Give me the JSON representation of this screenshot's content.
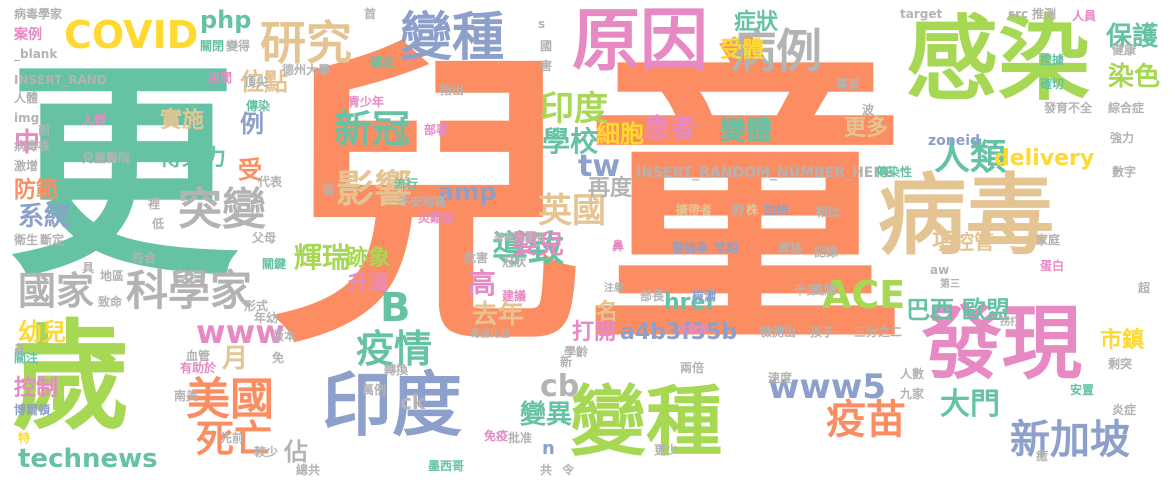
{
  "palette": {
    "orange": "#fc8d62",
    "green": "#a6d854",
    "teal": "#66c2a5",
    "blue": "#8da0cb",
    "pink": "#e78ac3",
    "tan": "#e5c494",
    "yellow": "#ffd92f",
    "gray": "#b3b3b3"
  },
  "words": [
    {
      "text": "兒童",
      "color": "orange"
    },
    {
      "text": "更",
      "color": "teal"
    },
    {
      "text": "歲",
      "color": "green"
    },
    {
      "text": "感染",
      "color": "green"
    },
    {
      "text": "病毒",
      "color": "tan"
    },
    {
      "text": "發現",
      "color": "pink"
    },
    {
      "text": "原因",
      "color": "pink"
    },
    {
      "text": "變種",
      "color": "blue"
    },
    {
      "text": "印度",
      "color": "blue"
    },
    {
      "text": "變種",
      "color": "green"
    },
    {
      "text": "病例",
      "color": "gray"
    },
    {
      "text": "研究",
      "color": "tan"
    },
    {
      "text": "COVID",
      "color": "yellow"
    },
    {
      "text": "科學家",
      "color": "gray"
    },
    {
      "text": "突變",
      "color": "gray"
    },
    {
      "text": "疫苗",
      "color": "orange"
    },
    {
      "text": "美國",
      "color": "orange"
    },
    {
      "text": "新加坡",
      "color": "blue"
    },
    {
      "text": "新冠",
      "color": "teal"
    },
    {
      "text": "影響",
      "color": "tan"
    },
    {
      "text": "ACE",
      "color": "green"
    },
    {
      "text": "國家",
      "color": "gray"
    },
    {
      "text": "死亡",
      "color": "orange"
    },
    {
      "text": "technews",
      "color": "teal"
    },
    {
      "text": "人類",
      "color": "teal"
    },
    {
      "text": "印度",
      "color": "green"
    },
    {
      "text": "英國",
      "color": "tan"
    },
    {
      "text": "導致",
      "color": "teal"
    },
    {
      "text": "疫情",
      "color": "teal"
    },
    {
      "text": "B",
      "color": "teal"
    },
    {
      "text": "www5",
      "color": "blue"
    },
    {
      "text": "www",
      "color": "pink"
    },
    {
      "text": "保護",
      "color": "teal"
    },
    {
      "text": "染色",
      "color": "green"
    },
    {
      "text": "症狀",
      "color": "teal"
    },
    {
      "text": "受體",
      "color": "yellow"
    },
    {
      "text": "php",
      "color": "teal"
    },
    {
      "text": "位點",
      "color": "tan"
    },
    {
      "text": "患者",
      "color": "pink"
    },
    {
      "text": "學校",
      "color": "teal"
    },
    {
      "text": "細胞",
      "color": "yellow"
    },
    {
      "text": "變體",
      "color": "teal"
    },
    {
      "text": "更多",
      "color": "tan"
    },
    {
      "text": "tw",
      "color": "blue"
    },
    {
      "text": "delivery",
      "color": "yellow"
    },
    {
      "text": "amp",
      "color": "blue"
    },
    {
      "text": "實施",
      "color": "tan"
    },
    {
      "text": "傳染力",
      "color": "teal"
    },
    {
      "text": "輝瑞",
      "color": "green"
    },
    {
      "text": "嬰兒",
      "color": "pink"
    },
    {
      "text": "高",
      "color": "pink"
    },
    {
      "text": "去年",
      "color": "tan"
    },
    {
      "text": "巴西",
      "color": "teal"
    },
    {
      "text": "歐盟",
      "color": "teal"
    },
    {
      "text": "大門",
      "color": "teal"
    },
    {
      "text": "變異",
      "color": "teal"
    },
    {
      "text": "cb",
      "color": "gray"
    },
    {
      "text": "月",
      "color": "tan"
    },
    {
      "text": "幼兒",
      "color": "yellow"
    },
    {
      "text": "系統",
      "color": "blue"
    },
    {
      "text": "項",
      "color": "tan"
    },
    {
      "text": "控管",
      "color": "tan"
    },
    {
      "text": "市鎮",
      "color": "yellow"
    },
    {
      "text": "跡象",
      "color": "green"
    },
    {
      "text": "升溫",
      "color": "pink"
    },
    {
      "text": "名",
      "color": "tan"
    },
    {
      "text": "打開",
      "color": "pink"
    },
    {
      "text": "a4b3f35b",
      "color": "blue"
    },
    {
      "text": "href",
      "color": "teal"
    },
    {
      "text": "佔",
      "color": "gray"
    },
    {
      "text": "控制",
      "color": "pink"
    },
    {
      "text": "防範",
      "color": "orange"
    },
    {
      "text": "中",
      "color": "pink"
    },
    {
      "text": "例",
      "color": "blue"
    },
    {
      "text": "受",
      "color": "orange"
    },
    {
      "text": "再度",
      "color": "gray"
    },
    {
      "text": "INSERT_RANDOM_NUMBER_HERE",
      "color": "gray"
    },
    {
      "text": "INSERT_RAND",
      "color": "gray"
    },
    {
      "text": "病毒學家",
      "color": "gray"
    },
    {
      "text": "案例",
      "color": "pink"
    },
    {
      "text": "_blank",
      "color": "gray"
    },
    {
      "text": "關閉",
      "color": "teal"
    },
    {
      "text": "變得",
      "color": "gray"
    },
    {
      "text": "德州大學",
      "color": "gray"
    },
    {
      "text": "房間",
      "color": "pink"
    },
    {
      "text": "頂尖",
      "color": "gray"
    },
    {
      "text": "人體",
      "color": "gray"
    },
    {
      "text": "img",
      "color": "gray"
    },
    {
      "text": "人群",
      "color": "pink"
    },
    {
      "text": "兒童醫院",
      "color": "gray"
    },
    {
      "text": "病毒株",
      "color": "gray"
    },
    {
      "text": "激增",
      "color": "gray"
    },
    {
      "text": "衛生",
      "color": "gray"
    },
    {
      "text": "斷定",
      "color": "gray"
    },
    {
      "text": "傳染",
      "color": "teal"
    },
    {
      "text": "青少年",
      "color": "pink"
    },
    {
      "text": "指出",
      "color": "gray"
    },
    {
      "text": "部署",
      "color": "pink"
    },
    {
      "text": "鎖定",
      "color": "teal"
    },
    {
      "text": "確切",
      "color": "teal"
    },
    {
      "text": "證據",
      "color": "teal"
    },
    {
      "text": "人員",
      "color": "pink"
    },
    {
      "text": "健康",
      "color": "gray"
    },
    {
      "text": "target",
      "color": "gray"
    },
    {
      "text": "src",
      "color": "gray"
    },
    {
      "text": "推測",
      "color": "gray"
    },
    {
      "text": "專家",
      "color": "gray"
    },
    {
      "text": "發育不全",
      "color": "gray"
    },
    {
      "text": "綜合症",
      "color": "gray"
    },
    {
      "text": "強力",
      "color": "gray"
    },
    {
      "text": "zoneid",
      "color": "blue"
    },
    {
      "text": "數字",
      "color": "gray"
    },
    {
      "text": "傳染性",
      "color": "teal"
    },
    {
      "text": "流行",
      "color": "teal"
    },
    {
      "text": "不安地高",
      "color": "gray"
    },
    {
      "text": "災難性",
      "color": "pink"
    },
    {
      "text": "代表",
      "color": "gray"
    },
    {
      "text": "擴帶者",
      "color": "tan"
    },
    {
      "text": "株",
      "color": "tan"
    },
    {
      "text": "加州",
      "color": "blue"
    },
    {
      "text": "相比",
      "color": "gray"
    },
    {
      "text": "發病率",
      "color": "blue"
    },
    {
      "text": "早期",
      "color": "blue"
    },
    {
      "text": "資格",
      "color": "gray"
    },
    {
      "text": "記錄",
      "color": "gray"
    },
    {
      "text": "哥斯大黎加",
      "color": "gray"
    },
    {
      "text": "危害",
      "color": "gray"
    },
    {
      "text": "冠狀",
      "color": "gray"
    },
    {
      "text": "建議",
      "color": "pink"
    },
    {
      "text": "家庭",
      "color": "gray"
    },
    {
      "text": "蛋白",
      "color": "pink"
    },
    {
      "text": "超",
      "color": "gray"
    },
    {
      "text": "部長",
      "color": "gray"
    },
    {
      "text": "檢測",
      "color": "blue"
    },
    {
      "text": "千多",
      "color": "gray"
    },
    {
      "text": "風險",
      "color": "gray"
    },
    {
      "text": "檢測出",
      "color": "gray"
    },
    {
      "text": "孩子",
      "color": "gray"
    },
    {
      "text": "三分之二",
      "color": "gray"
    },
    {
      "text": "哥倫比亞",
      "color": "gray"
    },
    {
      "text": "收縮素",
      "color": "pink"
    },
    {
      "text": "剩突",
      "color": "gray"
    },
    {
      "text": "安置",
      "color": "teal"
    },
    {
      "text": "人數",
      "color": "gray"
    },
    {
      "text": "九家",
      "color": "gray"
    },
    {
      "text": "速度",
      "color": "gray"
    },
    {
      "text": "學齡",
      "color": "gray"
    },
    {
      "text": "免疫",
      "color": "pink"
    },
    {
      "text": "墨西哥",
      "color": "teal"
    },
    {
      "text": "總共",
      "color": "gray"
    },
    {
      "text": "較少",
      "color": "gray"
    },
    {
      "text": "先前",
      "color": "gray"
    },
    {
      "text": "南美",
      "color": "gray"
    },
    {
      "text": "博爾頓",
      "color": "blue"
    },
    {
      "text": "特",
      "color": "yellow"
    },
    {
      "text": "關注",
      "color": "teal"
    },
    {
      "text": "有助於",
      "color": "pink"
    },
    {
      "text": "血管",
      "color": "gray"
    },
    {
      "text": "轉換",
      "color": "gray"
    },
    {
      "text": "萬例",
      "color": "gray"
    },
    {
      "text": "ck",
      "color": "gray"
    },
    {
      "text": "a",
      "color": "gray"
    },
    {
      "text": "形式",
      "color": "gray"
    },
    {
      "text": "年幼",
      "color": "gray"
    },
    {
      "text": "致命",
      "color": "gray"
    },
    {
      "text": "地區",
      "color": "gray"
    },
    {
      "text": "符合",
      "color": "gray"
    },
    {
      "text": "關鍵",
      "color": "teal"
    },
    {
      "text": "炎症",
      "color": "gray"
    },
    {
      "text": "批准",
      "color": "gray"
    },
    {
      "text": "更少",
      "color": "gray"
    },
    {
      "text": "具",
      "color": "gray"
    },
    {
      "text": "版本",
      "color": "gray"
    },
    {
      "text": "父母",
      "color": "gray"
    },
    {
      "text": "低",
      "color": "gray"
    },
    {
      "text": "裡",
      "color": "gray"
    },
    {
      "text": "兩",
      "color": "gray"
    },
    {
      "text": "首",
      "color": "gray"
    },
    {
      "text": "國",
      "color": "gray"
    },
    {
      "text": "害",
      "color": "gray"
    },
    {
      "text": "波",
      "color": "gray"
    },
    {
      "text": "前",
      "color": "gray"
    },
    {
      "text": "約",
      "color": "gray"
    },
    {
      "text": "n",
      "color": "blue"
    },
    {
      "text": "aw",
      "color": "gray"
    },
    {
      "text": "第三",
      "color": "gray"
    },
    {
      "text": "癒",
      "color": "gray"
    },
    {
      "text": "令",
      "color": "gray"
    },
    {
      "text": "共",
      "color": "gray"
    },
    {
      "text": "新",
      "color": "gray"
    },
    {
      "text": "免",
      "color": "gray"
    },
    {
      "text": "拐打",
      "color": "gray"
    },
    {
      "text": "s",
      "color": "gray"
    },
    {
      "text": "注射",
      "color": "gray"
    },
    {
      "text": "鼻",
      "color": "pink"
    },
    {
      "text": "兩倍",
      "color": "gray"
    }
  ]
}
